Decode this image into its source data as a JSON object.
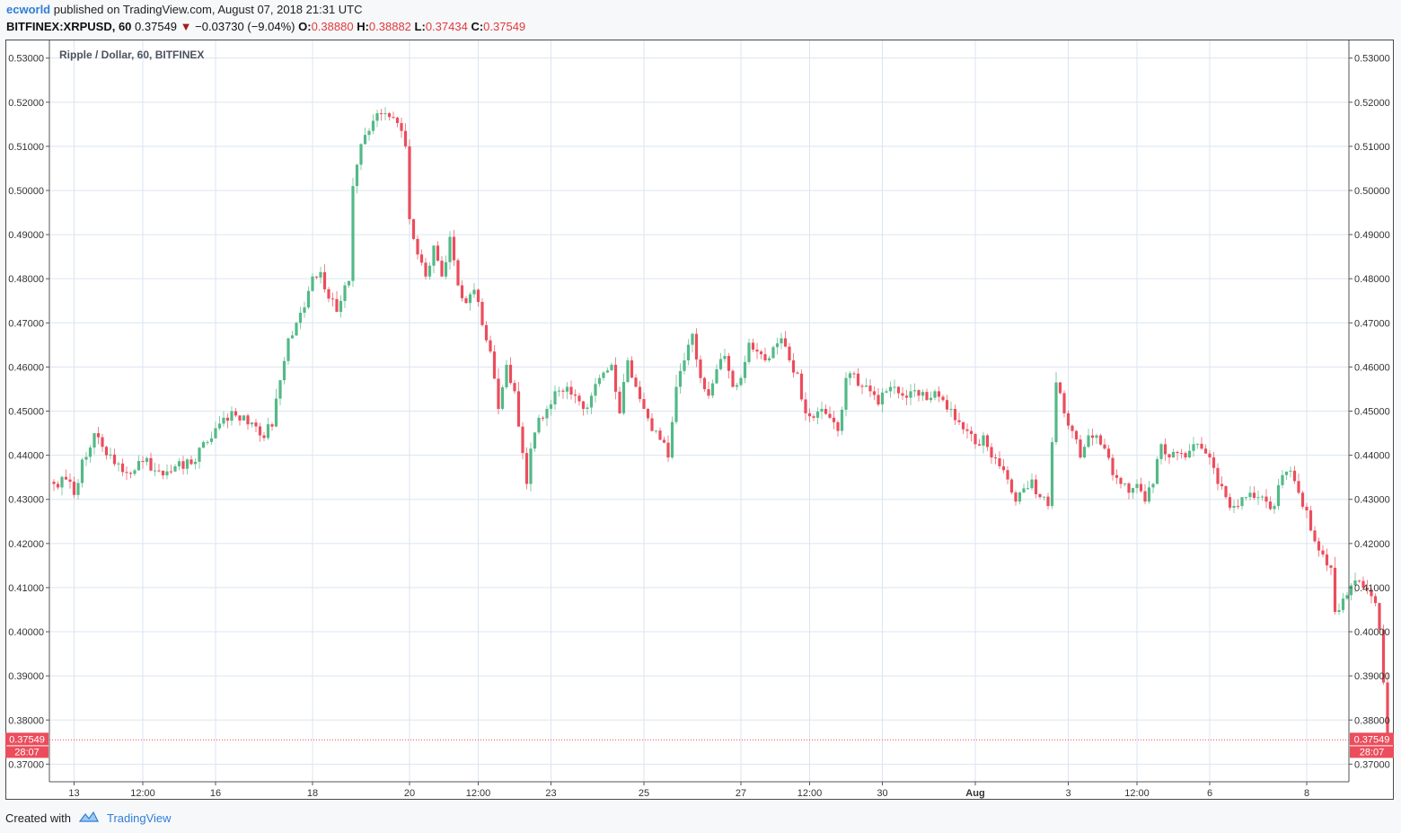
{
  "header": {
    "author": "ecworld",
    "published_text": "published on TradingView.com, August 07, 2018 21:31 UTC",
    "symbol": "BITFINEX:XRPUSD, 60",
    "last_price": "0.37549",
    "change": "−0.03730 (−9.04%)",
    "o_label": "O:",
    "o_value": "0.38880",
    "h_label": "H:",
    "h_value": "0.38882",
    "l_label": "L:",
    "l_value": "0.37434",
    "c_label": "C:",
    "c_value": "0.37549"
  },
  "footer": {
    "created_with": "Created with",
    "brand": "TradingView"
  },
  "colors": {
    "up": "#53b987",
    "down": "#eb4d5c",
    "grid": "#dbe5f1",
    "accent": "#2f7ed8"
  },
  "chart_data": {
    "type": "candlestick",
    "title": "Ripple / Dollar, 60, BITFINEX",
    "ylim": [
      0.366,
      0.534
    ],
    "y_ticks": [
      "0.53000",
      "0.52000",
      "0.51000",
      "0.50000",
      "0.49000",
      "0.48000",
      "0.47000",
      "0.46000",
      "0.45000",
      "0.44000",
      "0.43000",
      "0.42000",
      "0.41000",
      "0.40000",
      "0.39000",
      "0.38000",
      "0.37000"
    ],
    "x_ticks": [
      "13",
      "12:00",
      "16",
      "18",
      "20",
      "12:00",
      "23",
      "25",
      "27",
      "12:00",
      "30",
      "Aug",
      "3",
      "12:00",
      "6",
      "8"
    ],
    "x_tick_index": [
      5,
      22,
      40,
      64,
      88,
      105,
      123,
      146,
      170,
      187,
      205,
      228,
      251,
      268,
      286,
      310
    ],
    "last_price_label": "0.37549",
    "countdown_label": "28:07",
    "anchors": [
      [
        0,
        0.4335
      ],
      [
        3,
        0.4345
      ],
      [
        5,
        0.431
      ],
      [
        7,
        0.439
      ],
      [
        10,
        0.445
      ],
      [
        13,
        0.44
      ],
      [
        15,
        0.438
      ],
      [
        18,
        0.436
      ],
      [
        22,
        0.4385
      ],
      [
        26,
        0.4365
      ],
      [
        30,
        0.4375
      ],
      [
        34,
        0.438
      ],
      [
        38,
        0.443
      ],
      [
        42,
        0.4485
      ],
      [
        45,
        0.449
      ],
      [
        48,
        0.447
      ],
      [
        51,
        0.4445
      ],
      [
        54,
        0.4465
      ],
      [
        56,
        0.457
      ],
      [
        58,
        0.4665
      ],
      [
        60,
        0.47
      ],
      [
        62,
        0.4735
      ],
      [
        64,
        0.4805
      ],
      [
        66,
        0.4815
      ],
      [
        68,
        0.4755
      ],
      [
        70,
        0.4725
      ],
      [
        72,
        0.4785
      ],
      [
        73,
        0.4795
      ],
      [
        74,
        0.501
      ],
      [
        76,
        0.5105
      ],
      [
        78,
        0.5135
      ],
      [
        80,
        0.5175
      ],
      [
        82,
        0.5175
      ],
      [
        84,
        0.5165
      ],
      [
        86,
        0.5135
      ],
      [
        87,
        0.51
      ],
      [
        88,
        0.4935
      ],
      [
        90,
        0.4855
      ],
      [
        92,
        0.4805
      ],
      [
        94,
        0.4875
      ],
      [
        96,
        0.4805
      ],
      [
        98,
        0.4895
      ],
      [
        100,
        0.4785
      ],
      [
        102,
        0.4745
      ],
      [
        104,
        0.4775
      ],
      [
        106,
        0.4695
      ],
      [
        108,
        0.4635
      ],
      [
        110,
        0.4505
      ],
      [
        112,
        0.4605
      ],
      [
        114,
        0.4545
      ],
      [
        116,
        0.4405
      ],
      [
        117,
        0.4335
      ],
      [
        118,
        0.4415
      ],
      [
        120,
        0.4485
      ],
      [
        122,
        0.4505
      ],
      [
        124,
        0.4545
      ],
      [
        127,
        0.4555
      ],
      [
        129,
        0.4535
      ],
      [
        131,
        0.4505
      ],
      [
        133,
        0.4535
      ],
      [
        135,
        0.4575
      ],
      [
        138,
        0.4605
      ],
      [
        140,
        0.4495
      ],
      [
        142,
        0.4615
      ],
      [
        144,
        0.4555
      ],
      [
        146,
        0.4505
      ],
      [
        148,
        0.4455
      ],
      [
        150,
        0.4435
      ],
      [
        152,
        0.4395
      ],
      [
        154,
        0.4555
      ],
      [
        156,
        0.4615
      ],
      [
        158,
        0.4675
      ],
      [
        160,
        0.4575
      ],
      [
        162,
        0.4535
      ],
      [
        164,
        0.4595
      ],
      [
        166,
        0.4625
      ],
      [
        168,
        0.4555
      ],
      [
        170,
        0.4575
      ],
      [
        172,
        0.4655
      ],
      [
        174,
        0.4635
      ],
      [
        176,
        0.4615
      ],
      [
        178,
        0.4645
      ],
      [
        180,
        0.4665
      ],
      [
        182,
        0.4615
      ],
      [
        184,
        0.4585
      ],
      [
        186,
        0.4495
      ],
      [
        188,
        0.4485
      ],
      [
        190,
        0.4505
      ],
      [
        192,
        0.4485
      ],
      [
        194,
        0.4455
      ],
      [
        196,
        0.4575
      ],
      [
        198,
        0.4585
      ],
      [
        200,
        0.4555
      ],
      [
        202,
        0.4545
      ],
      [
        204,
        0.4515
      ],
      [
        206,
        0.4545
      ],
      [
        208,
        0.4555
      ],
      [
        210,
        0.4535
      ],
      [
        212,
        0.4545
      ],
      [
        214,
        0.4535
      ],
      [
        216,
        0.4525
      ],
      [
        218,
        0.4545
      ],
      [
        220,
        0.4525
      ],
      [
        222,
        0.4505
      ],
      [
        224,
        0.4475
      ],
      [
        226,
        0.4455
      ],
      [
        228,
        0.4425
      ],
      [
        230,
        0.4445
      ],
      [
        232,
        0.4395
      ],
      [
        234,
        0.4375
      ],
      [
        236,
        0.4345
      ],
      [
        238,
        0.4295
      ],
      [
        240,
        0.4325
      ],
      [
        242,
        0.4345
      ],
      [
        244,
        0.4305
      ],
      [
        246,
        0.4285
      ],
      [
        248,
        0.4565
      ],
      [
        250,
        0.4495
      ],
      [
        252,
        0.4455
      ],
      [
        254,
        0.4395
      ],
      [
        256,
        0.4445
      ],
      [
        258,
        0.4445
      ],
      [
        260,
        0.4415
      ],
      [
        262,
        0.4355
      ],
      [
        264,
        0.4335
      ],
      [
        266,
        0.4315
      ],
      [
        268,
        0.4335
      ],
      [
        270,
        0.4295
      ],
      [
        272,
        0.4335
      ],
      [
        274,
        0.4425
      ],
      [
        276,
        0.4395
      ],
      [
        278,
        0.4405
      ],
      [
        280,
        0.4395
      ],
      [
        282,
        0.4425
      ],
      [
        284,
        0.4415
      ],
      [
        286,
        0.4395
      ],
      [
        288,
        0.4335
      ],
      [
        290,
        0.4305
      ],
      [
        292,
        0.4285
      ],
      [
        294,
        0.4305
      ],
      [
        296,
        0.4315
      ],
      [
        298,
        0.4305
      ],
      [
        300,
        0.4295
      ],
      [
        302,
        0.4285
      ],
      [
        304,
        0.4355
      ],
      [
        306,
        0.4365
      ],
      [
        308,
        0.4315
      ],
      [
        310,
        0.4275
      ],
      [
        312,
        0.4205
      ],
      [
        314,
        0.4175
      ],
      [
        316,
        0.4145
      ],
      [
        317,
        0.4045
      ],
      [
        319,
        0.4075
      ],
      [
        321,
        0.4105
      ],
      [
        323,
        0.4115
      ],
      [
        325,
        0.4095
      ],
      [
        327,
        0.4065
      ],
      [
        328,
        0.4005
      ],
      [
        329,
        0.3885
      ],
      [
        330,
        0.37549
      ]
    ]
  }
}
